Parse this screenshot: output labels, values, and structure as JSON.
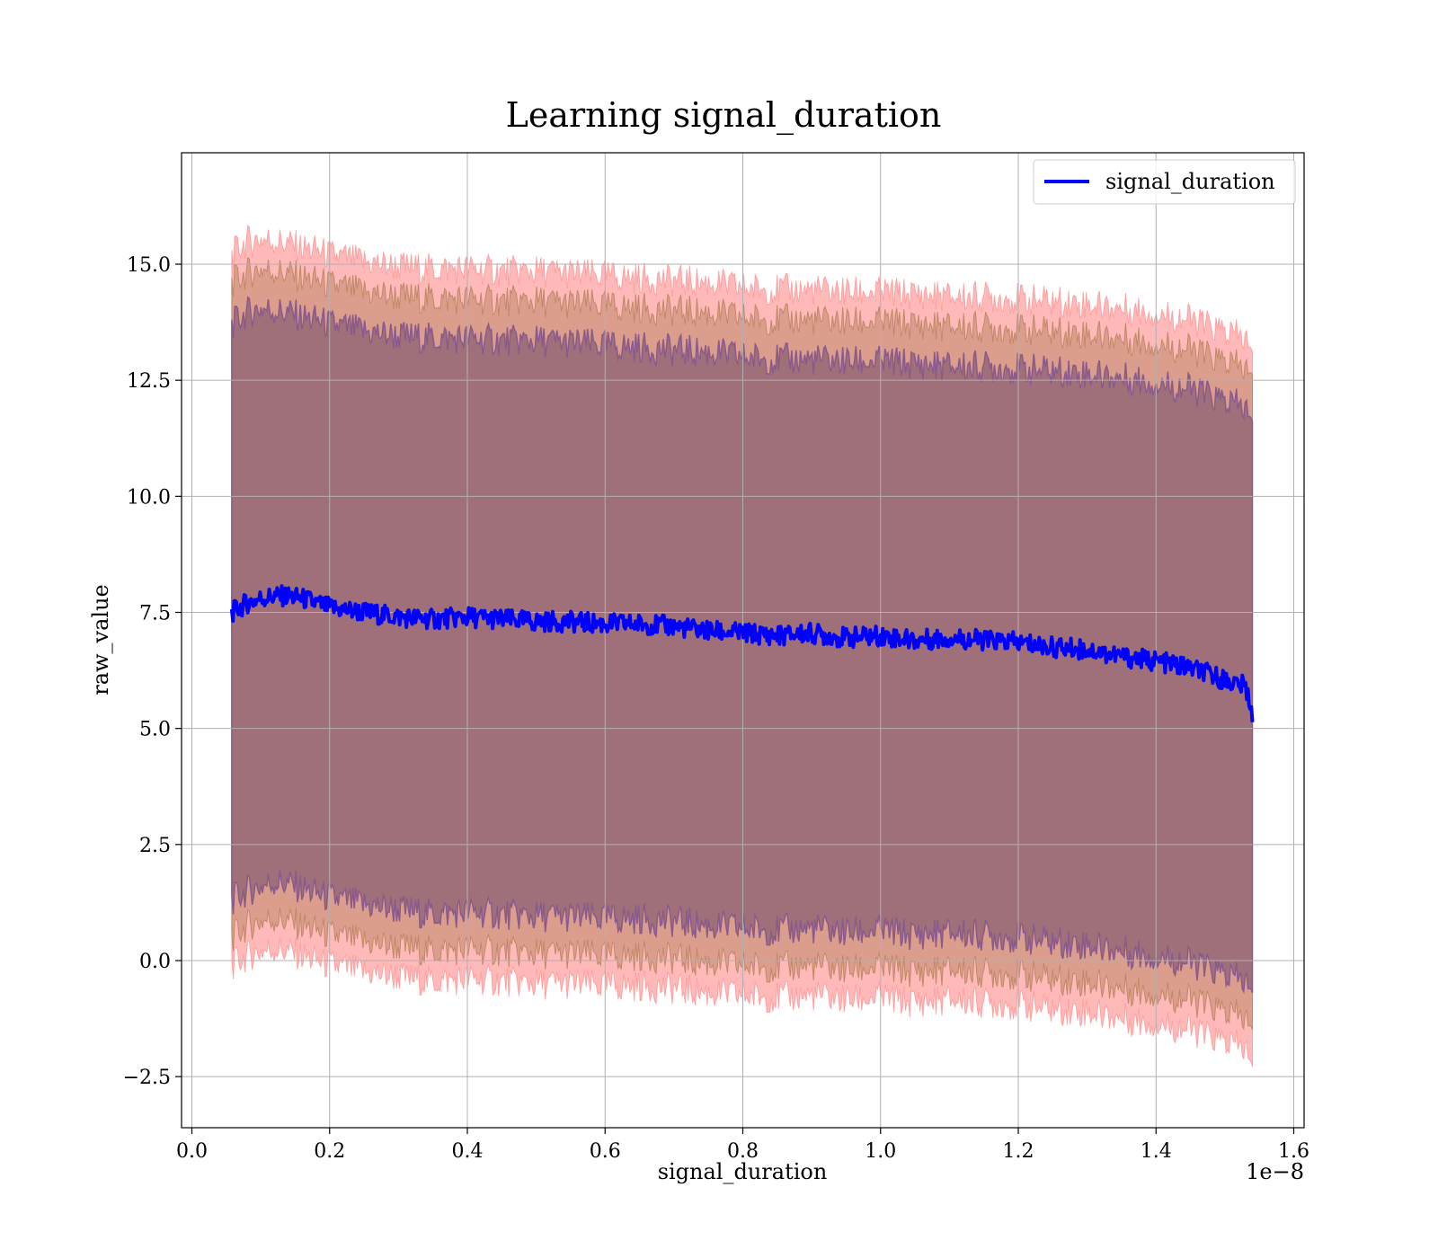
{
  "chart_data": {
    "type": "line",
    "title": "Learning signal_duration",
    "xlabel": "signal_duration",
    "ylabel": "raw_value",
    "x_offset_label": "1e−8",
    "xlim": [
      -0.015,
      1.615
    ],
    "ylim": [
      -3.6,
      17.4
    ],
    "xticks": [
      0.0,
      0.2,
      0.4,
      0.6,
      0.8,
      1.0,
      1.2,
      1.4,
      1.6
    ],
    "xtick_labels": [
      "0.0",
      "0.2",
      "0.4",
      "0.6",
      "0.8",
      "1.0",
      "1.2",
      "1.4",
      "1.6"
    ],
    "yticks": [
      -2.5,
      0.0,
      2.5,
      5.0,
      7.5,
      10.0,
      12.5,
      15.0
    ],
    "ytick_labels": [
      "−2.5",
      "0.0",
      "2.5",
      "5.0",
      "7.5",
      "10.0",
      "12.5",
      "15.0"
    ],
    "grid": true,
    "legend": {
      "placement": "upper-right",
      "entries": [
        "signal_duration"
      ]
    },
    "colors": {
      "line": "#0000ff",
      "outer_band": "#ff8080",
      "middle_band": "#c08868",
      "inner_band": "#a0707a",
      "inner_edge": "#8a5a8a",
      "grid": "#b0b0b0"
    },
    "series": [
      {
        "name": "signal_duration",
        "x": [
          0.058,
          0.08,
          0.1,
          0.12,
          0.14,
          0.16,
          0.18,
          0.2,
          0.25,
          0.3,
          0.35,
          0.4,
          0.45,
          0.5,
          0.55,
          0.6,
          0.65,
          0.7,
          0.75,
          0.8,
          0.85,
          0.9,
          0.95,
          1.0,
          1.05,
          1.1,
          1.15,
          1.2,
          1.25,
          1.3,
          1.35,
          1.4,
          1.45,
          1.5,
          1.53,
          1.54
        ],
        "y": [
          7.5,
          7.7,
          7.8,
          7.85,
          7.85,
          7.8,
          7.7,
          7.6,
          7.5,
          7.4,
          7.35,
          7.4,
          7.35,
          7.3,
          7.3,
          7.25,
          7.25,
          7.2,
          7.1,
          7.05,
          7.0,
          7.05,
          6.95,
          7.0,
          6.9,
          6.95,
          6.9,
          6.85,
          6.75,
          6.7,
          6.55,
          6.45,
          6.3,
          6.05,
          5.9,
          5.35
        ]
      }
    ],
    "bands": {
      "outer_upper": [
        15.2,
        15.5,
        15.55,
        15.5,
        15.45,
        15.35,
        15.3,
        15.2,
        15.05,
        14.95,
        14.9,
        14.9,
        14.85,
        14.85,
        14.8,
        14.75,
        14.7,
        14.65,
        14.6,
        14.5,
        14.45,
        14.45,
        14.4,
        14.4,
        14.35,
        14.3,
        14.3,
        14.25,
        14.2,
        14.15,
        14.05,
        13.95,
        13.8,
        13.55,
        13.4,
        13.0
      ],
      "middle_upper": [
        14.6,
        14.8,
        14.9,
        14.85,
        14.8,
        14.7,
        14.65,
        14.55,
        14.4,
        14.3,
        14.25,
        14.25,
        14.2,
        14.2,
        14.15,
        14.1,
        14.05,
        14.0,
        13.95,
        13.85,
        13.8,
        13.8,
        13.75,
        13.75,
        13.7,
        13.65,
        13.65,
        13.6,
        13.55,
        13.5,
        13.4,
        13.3,
        13.15,
        12.9,
        12.75,
        12.5
      ],
      "inner_upper": [
        13.7,
        13.95,
        14.05,
        14.0,
        13.95,
        13.85,
        13.8,
        13.7,
        13.55,
        13.45,
        13.4,
        13.4,
        13.35,
        13.35,
        13.3,
        13.25,
        13.2,
        13.15,
        13.1,
        13.0,
        12.95,
        12.95,
        12.9,
        12.9,
        12.85,
        12.8,
        12.8,
        12.75,
        12.7,
        12.65,
        12.55,
        12.45,
        12.3,
        12.05,
        11.9,
        11.5
      ],
      "inner_lower": [
        1.3,
        1.5,
        1.6,
        1.7,
        1.65,
        1.55,
        1.45,
        1.35,
        1.2,
        1.1,
        1.0,
        1.05,
        1.0,
        0.95,
        0.95,
        0.9,
        0.9,
        0.85,
        0.75,
        0.7,
        0.65,
        0.7,
        0.6,
        0.65,
        0.55,
        0.6,
        0.55,
        0.5,
        0.4,
        0.35,
        0.2,
        0.1,
        -0.05,
        -0.3,
        -0.45,
        -0.8
      ],
      "middle_lower": [
        0.5,
        0.75,
        0.85,
        0.9,
        0.85,
        0.75,
        0.65,
        0.55,
        0.4,
        0.3,
        0.2,
        0.25,
        0.2,
        0.15,
        0.15,
        0.1,
        0.1,
        0.05,
        -0.05,
        -0.1,
        -0.15,
        -0.1,
        -0.2,
        -0.15,
        -0.25,
        -0.2,
        -0.25,
        -0.3,
        -0.4,
        -0.45,
        -0.6,
        -0.7,
        -0.85,
        -1.1,
        -1.25,
        -1.6
      ],
      "outer_lower": [
        -0.1,
        0.1,
        0.2,
        0.25,
        0.2,
        0.1,
        0.0,
        -0.1,
        -0.25,
        -0.35,
        -0.45,
        -0.4,
        -0.45,
        -0.5,
        -0.5,
        -0.55,
        -0.55,
        -0.6,
        -0.7,
        -0.75,
        -0.8,
        -0.75,
        -0.85,
        -0.8,
        -0.9,
        -0.85,
        -0.9,
        -0.95,
        -1.05,
        -1.1,
        -1.25,
        -1.35,
        -1.5,
        -1.75,
        -1.9,
        -2.4
      ]
    }
  }
}
